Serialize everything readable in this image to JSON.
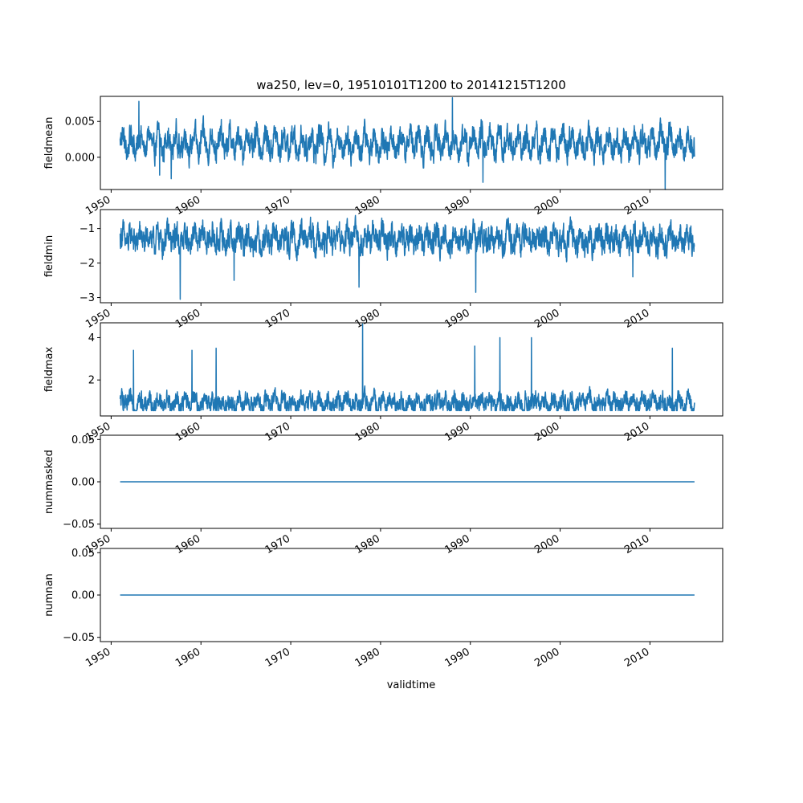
{
  "figure": {
    "title": "wa250, lev=0, 19510101T1200 to 20141215T1200",
    "xlabel": "validtime"
  },
  "chart_data": [
    {
      "type": "line",
      "ylabel": "fieldmean",
      "xlim": [
        1948.8,
        2018.1
      ],
      "ylim": [
        -0.0045,
        0.0085
      ],
      "yticks": [
        0.0,
        0.005
      ],
      "ytick_labels": [
        "0.000",
        "0.005"
      ],
      "xticks": [
        1950,
        1960,
        1970,
        1980,
        1990,
        2000,
        2010
      ],
      "xtick_labels": [
        "1950",
        "1960",
        "1970",
        "1980",
        "1990",
        "2000",
        "2010"
      ],
      "series": [
        {
          "color": "#1f77b4",
          "x_range": [
            1951.0,
            2014.96
          ],
          "baseline": 0.002,
          "band": [
            -0.0015,
            0.0058
          ],
          "noise": 0.0014,
          "seasonal_amplitude": 0.0013,
          "extremes": [
            {
              "x": 1953.1,
              "y": 0.0078
            },
            {
              "x": 1955.4,
              "y": -0.0025
            },
            {
              "x": 1956.7,
              "y": -0.003
            },
            {
              "x": 1988.0,
              "y": 0.0083
            },
            {
              "x": 1991.4,
              "y": -0.0035
            },
            {
              "x": 2011.7,
              "y": -0.0045
            }
          ]
        }
      ]
    },
    {
      "type": "line",
      "ylabel": "fieldmin",
      "xlim": [
        1948.8,
        2018.1
      ],
      "ylim": [
        -3.15,
        -0.45
      ],
      "yticks": [
        -3,
        -2,
        -1
      ],
      "ytick_labels": [
        "−3",
        "−2",
        "−1"
      ],
      "xticks": [
        1950,
        1960,
        1970,
        1980,
        1990,
        2000,
        2010
      ],
      "xtick_labels": [
        "1950",
        "1960",
        "1970",
        "1980",
        "1990",
        "2000",
        "2010"
      ],
      "series": [
        {
          "color": "#1f77b4",
          "x_range": [
            1951.0,
            2014.96
          ],
          "baseline": -1.3,
          "band": [
            -2.3,
            -0.55
          ],
          "noise": 0.3,
          "seasonal_amplitude": 0.15,
          "extremes": [
            {
              "x": 1957.7,
              "y": -3.05
            },
            {
              "x": 1977.6,
              "y": -2.7
            },
            {
              "x": 1990.6,
              "y": -2.85
            },
            {
              "x": 1963.7,
              "y": -2.5
            },
            {
              "x": 2008.1,
              "y": -2.4
            }
          ]
        }
      ]
    },
    {
      "type": "line",
      "ylabel": "fieldmax",
      "xlim": [
        1948.8,
        2018.1
      ],
      "ylim": [
        0.3,
        4.7
      ],
      "yticks": [
        2,
        4
      ],
      "ytick_labels": [
        "2",
        "4"
      ],
      "xticks": [
        1950,
        1960,
        1970,
        1980,
        1990,
        2000,
        2010
      ],
      "xtick_labels": [
        "1950",
        "1960",
        "1970",
        "1980",
        "1990",
        "2000",
        "2010"
      ],
      "series": [
        {
          "color": "#1f77b4",
          "x_range": [
            1951.0,
            2014.96
          ],
          "baseline": 0.9,
          "band": [
            0.55,
            2.4
          ],
          "noise": 0.35,
          "seasonal_amplitude": 0.2,
          "extremes": [
            {
              "x": 1952.5,
              "y": 3.4
            },
            {
              "x": 1959.0,
              "y": 3.4
            },
            {
              "x": 1961.7,
              "y": 3.5
            },
            {
              "x": 1978.0,
              "y": 4.65
            },
            {
              "x": 1990.5,
              "y": 3.6
            },
            {
              "x": 1993.3,
              "y": 4.0
            },
            {
              "x": 1996.8,
              "y": 4.0
            },
            {
              "x": 2012.5,
              "y": 3.5
            }
          ]
        }
      ]
    },
    {
      "type": "line",
      "ylabel": "nummasked",
      "xlim": [
        1948.8,
        2018.1
      ],
      "ylim": [
        -0.055,
        0.055
      ],
      "yticks": [
        -0.05,
        0.0,
        0.05
      ],
      "ytick_labels": [
        "−0.05",
        "0.00",
        "0.05"
      ],
      "xticks": [
        1950,
        1960,
        1970,
        1980,
        1990,
        2000,
        2010
      ],
      "xtick_labels": [
        "1950",
        "1960",
        "1970",
        "1980",
        "1990",
        "2000",
        "2010"
      ],
      "series": [
        {
          "color": "#1f77b4",
          "x": [
            1951.0,
            2014.96
          ],
          "y": [
            0,
            0
          ]
        }
      ]
    },
    {
      "type": "line",
      "ylabel": "numnan",
      "xlim": [
        1948.8,
        2018.1
      ],
      "ylim": [
        -0.055,
        0.055
      ],
      "yticks": [
        -0.05,
        0.0,
        0.05
      ],
      "ytick_labels": [
        "−0.05",
        "0.00",
        "0.05"
      ],
      "xticks": [
        1950,
        1960,
        1970,
        1980,
        1990,
        2000,
        2010
      ],
      "xtick_labels": [
        "1950",
        "1960",
        "1970",
        "1980",
        "1990",
        "2000",
        "2010"
      ],
      "series": [
        {
          "color": "#1f77b4",
          "x": [
            1951.0,
            2014.96
          ],
          "y": [
            0,
            0
          ]
        }
      ]
    }
  ]
}
